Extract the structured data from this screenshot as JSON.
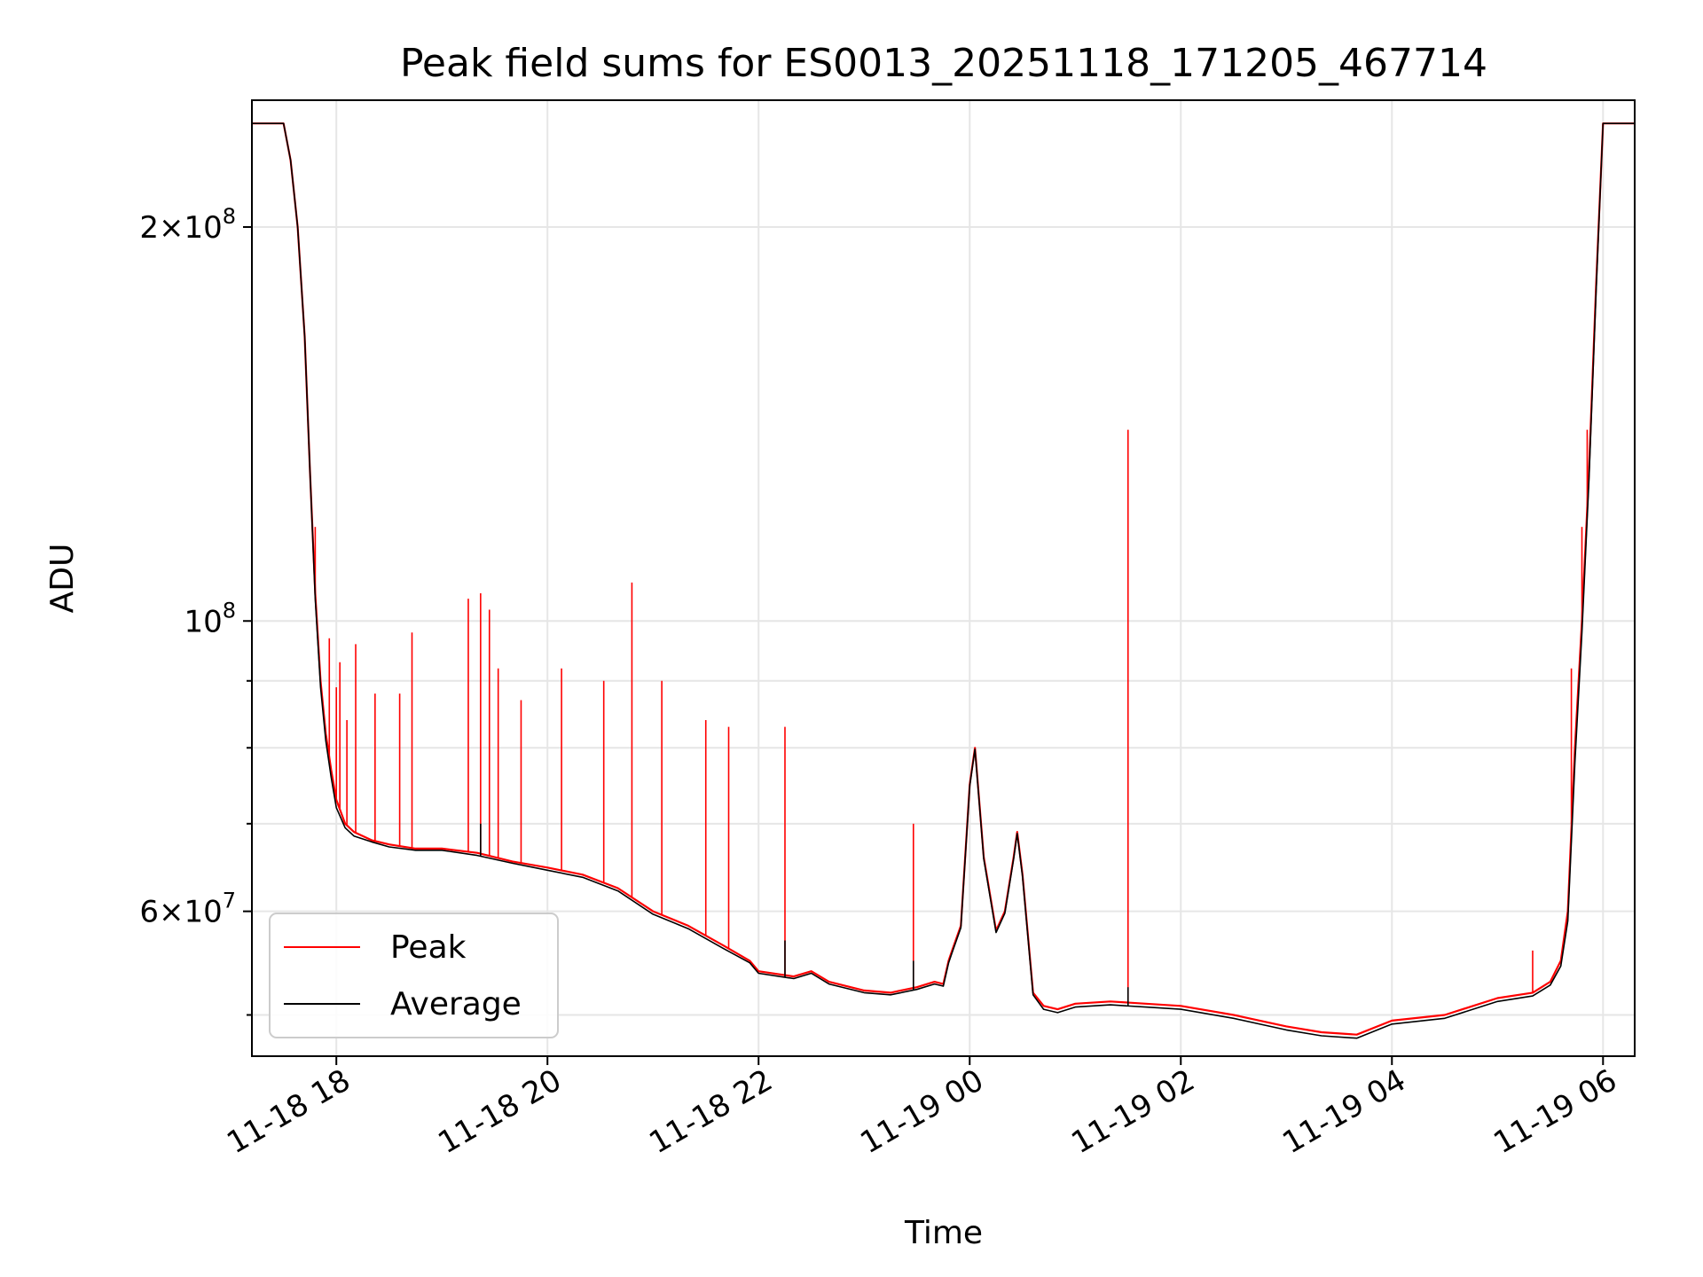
{
  "chart_data": {
    "type": "line",
    "title": "Peak field sums for ES0013_20251118_171205_467714",
    "xlabel": "Time",
    "ylabel": "ADU",
    "y_scale": "log",
    "ylim": [
      46500000,
      250000000
    ],
    "xlim": [
      "2025-11-18 17:12",
      "2025-11-19 06:18"
    ],
    "x_ticks": [
      "11-18 18",
      "11-18 20",
      "11-18 22",
      "11-19 00",
      "11-19 02",
      "11-19 04",
      "11-19 06"
    ],
    "x_tick_times": [
      "2025-11-18 18:00",
      "2025-11-18 20:00",
      "2025-11-18 22:00",
      "2025-11-19 00:00",
      "2025-11-19 02:00",
      "2025-11-19 04:00",
      "2025-11-19 06:00"
    ],
    "y_ticks": [
      {
        "value": 200000000,
        "mant": "2",
        "exp": "8",
        "major": true
      },
      {
        "value": 100000000,
        "mant": "",
        "exp": "8",
        "major": true
      },
      {
        "value": 60000000,
        "mant": "6",
        "exp": "7",
        "major": true
      }
    ],
    "y_minor_ticks": [
      50000000,
      70000000,
      80000000,
      90000000
    ],
    "grid": true,
    "legend_position": "lower-left",
    "series": [
      {
        "name": "Peak",
        "color": "#ff0000",
        "x": [
          "2025-11-18 17:12",
          "2025-11-18 17:30",
          "2025-11-18 17:34",
          "2025-11-18 17:38",
          "2025-11-18 17:42",
          "2025-11-18 17:45",
          "2025-11-18 17:48",
          "2025-11-18 17:51",
          "2025-11-18 17:54",
          "2025-11-18 17:57",
          "2025-11-18 18:00",
          "2025-11-18 18:05",
          "2025-11-18 18:10",
          "2025-11-18 18:20",
          "2025-11-18 18:30",
          "2025-11-18 18:45",
          "2025-11-18 19:00",
          "2025-11-18 19:20",
          "2025-11-18 19:40",
          "2025-11-18 20:00",
          "2025-11-18 20:20",
          "2025-11-18 20:40",
          "2025-11-18 21:00",
          "2025-11-18 21:20",
          "2025-11-18 21:40",
          "2025-11-18 21:55",
          "2025-11-18 22:00",
          "2025-11-18 22:20",
          "2025-11-18 22:30",
          "2025-11-18 22:40",
          "2025-11-18 23:00",
          "2025-11-18 23:15",
          "2025-11-18 23:30",
          "2025-11-18 23:40",
          "2025-11-18 23:45",
          "2025-11-18 23:48",
          "2025-11-18 23:50",
          "2025-11-18 23:55",
          "2025-11-19 00:00",
          "2025-11-19 00:03",
          "2025-11-19 00:08",
          "2025-11-19 00:15",
          "2025-11-19 00:20",
          "2025-11-19 00:25",
          "2025-11-19 00:27",
          "2025-11-19 00:30",
          "2025-11-19 00:36",
          "2025-11-19 00:42",
          "2025-11-19 00:50",
          "2025-11-19 01:00",
          "2025-11-19 01:20",
          "2025-11-19 01:40",
          "2025-11-19 02:00",
          "2025-11-19 02:30",
          "2025-11-19 03:00",
          "2025-11-19 03:20",
          "2025-11-19 03:40",
          "2025-11-19 04:00",
          "2025-11-19 04:30",
          "2025-11-19 05:00",
          "2025-11-19 05:20",
          "2025-11-19 05:30",
          "2025-11-19 05:36",
          "2025-11-19 05:40",
          "2025-11-19 05:44",
          "2025-11-19 05:48",
          "2025-11-19 05:52",
          "2025-11-19 05:56",
          "2025-11-19 06:00",
          "2025-11-19 06:02",
          "2025-11-19 06:18"
        ],
        "values": [
          240000000,
          240000000,
          225000000,
          200000000,
          165000000,
          130000000,
          105000000,
          90000000,
          82000000,
          77000000,
          73000000,
          70000000,
          69000000,
          68000000,
          67500000,
          67000000,
          67000000,
          66500000,
          65500000,
          64800000,
          64000000,
          62500000,
          60000000,
          58500000,
          56500000,
          55000000,
          54000000,
          53500000,
          54000000,
          53000000,
          52200000,
          52000000,
          52500000,
          53000000,
          52800000,
          55000000,
          56000000,
          58500000,
          75000000,
          80000000,
          66000000,
          58000000,
          60000000,
          66000000,
          69000000,
          64000000,
          52000000,
          50800000,
          50500000,
          51000000,
          51200000,
          51000000,
          50800000,
          50000000,
          49000000,
          48500000,
          48300000,
          49500000,
          50000000,
          51500000,
          52000000,
          53000000,
          55000000,
          60000000,
          80000000,
          100000000,
          130000000,
          180000000,
          240000000,
          240000000,
          240000000
        ],
        "spikes": [
          {
            "x": "2025-11-18 17:48",
            "value": 118000000
          },
          {
            "x": "2025-11-18 17:56",
            "value": 97000000
          },
          {
            "x": "2025-11-18 18:00",
            "value": 89000000
          },
          {
            "x": "2025-11-18 18:02",
            "value": 93000000
          },
          {
            "x": "2025-11-18 18:06",
            "value": 84000000
          },
          {
            "x": "2025-11-18 18:11",
            "value": 96000000
          },
          {
            "x": "2025-11-18 18:22",
            "value": 88000000
          },
          {
            "x": "2025-11-18 18:36",
            "value": 88000000
          },
          {
            "x": "2025-11-18 18:43",
            "value": 98000000
          },
          {
            "x": "2025-11-18 19:15",
            "value": 104000000
          },
          {
            "x": "2025-11-18 19:22",
            "value": 105000000
          },
          {
            "x": "2025-11-18 19:27",
            "value": 102000000
          },
          {
            "x": "2025-11-18 19:32",
            "value": 92000000
          },
          {
            "x": "2025-11-18 19:45",
            "value": 87000000
          },
          {
            "x": "2025-11-18 20:08",
            "value": 92000000
          },
          {
            "x": "2025-11-18 20:32",
            "value": 90000000
          },
          {
            "x": "2025-11-18 20:48",
            "value": 107000000
          },
          {
            "x": "2025-11-18 21:05",
            "value": 90000000
          },
          {
            "x": "2025-11-18 21:30",
            "value": 84000000
          },
          {
            "x": "2025-11-18 21:43",
            "value": 83000000
          },
          {
            "x": "2025-11-18 22:15",
            "value": 83000000
          },
          {
            "x": "2025-11-18 23:28",
            "value": 70000000
          },
          {
            "x": "2025-11-19 01:30",
            "value": 140000000
          },
          {
            "x": "2025-11-19 05:20",
            "value": 56000000
          },
          {
            "x": "2025-11-19 05:42",
            "value": 92000000
          },
          {
            "x": "2025-11-19 05:48",
            "value": 118000000
          },
          {
            "x": "2025-11-19 05:51",
            "value": 140000000
          }
        ]
      },
      {
        "name": "Average",
        "color": "#000000",
        "x": [
          "2025-11-18 17:12",
          "2025-11-18 17:30",
          "2025-11-18 17:34",
          "2025-11-18 17:38",
          "2025-11-18 17:42",
          "2025-11-18 17:45",
          "2025-11-18 17:48",
          "2025-11-18 17:51",
          "2025-11-18 17:54",
          "2025-11-18 17:57",
          "2025-11-18 18:00",
          "2025-11-18 18:05",
          "2025-11-18 18:10",
          "2025-11-18 18:20",
          "2025-11-18 18:30",
          "2025-11-18 18:45",
          "2025-11-18 19:00",
          "2025-11-18 19:20",
          "2025-11-18 19:40",
          "2025-11-18 20:00",
          "2025-11-18 20:20",
          "2025-11-18 20:40",
          "2025-11-18 21:00",
          "2025-11-18 21:20",
          "2025-11-18 21:40",
          "2025-11-18 21:55",
          "2025-11-18 22:00",
          "2025-11-18 22:20",
          "2025-11-18 22:30",
          "2025-11-18 22:40",
          "2025-11-18 23:00",
          "2025-11-18 23:15",
          "2025-11-18 23:30",
          "2025-11-18 23:40",
          "2025-11-18 23:45",
          "2025-11-18 23:48",
          "2025-11-18 23:50",
          "2025-11-18 23:55",
          "2025-11-19 00:00",
          "2025-11-19 00:03",
          "2025-11-19 00:08",
          "2025-11-19 00:15",
          "2025-11-19 00:20",
          "2025-11-19 00:25",
          "2025-11-19 00:27",
          "2025-11-19 00:30",
          "2025-11-19 00:36",
          "2025-11-19 00:42",
          "2025-11-19 00:50",
          "2025-11-19 01:00",
          "2025-11-19 01:20",
          "2025-11-19 01:40",
          "2025-11-19 02:00",
          "2025-11-19 02:30",
          "2025-11-19 03:00",
          "2025-11-19 03:20",
          "2025-11-19 03:40",
          "2025-11-19 04:00",
          "2025-11-19 04:30",
          "2025-11-19 05:00",
          "2025-11-19 05:20",
          "2025-11-19 05:30",
          "2025-11-19 05:36",
          "2025-11-19 05:40",
          "2025-11-19 05:44",
          "2025-11-19 05:48",
          "2025-11-19 05:52",
          "2025-11-19 05:56",
          "2025-11-19 06:00",
          "2025-11-19 06:02",
          "2025-11-19 06:18"
        ],
        "values": [
          240000000,
          240000000,
          225000000,
          200000000,
          165000000,
          130000000,
          104000000,
          89000000,
          81000000,
          76000000,
          72000000,
          69500000,
          68500000,
          67800000,
          67200000,
          66800000,
          66800000,
          66200000,
          65300000,
          64500000,
          63700000,
          62200000,
          59700000,
          58200000,
          56200000,
          54800000,
          53800000,
          53300000,
          53800000,
          52800000,
          52000000,
          51800000,
          52300000,
          52800000,
          52600000,
          54800000,
          55800000,
          58300000,
          74800000,
          79800000,
          65800000,
          57800000,
          59800000,
          65800000,
          68800000,
          63800000,
          51800000,
          50500000,
          50200000,
          50700000,
          50900000,
          50700000,
          50500000,
          49700000,
          48700000,
          48200000,
          48000000,
          49200000,
          49700000,
          51200000,
          51700000,
          52700000,
          54500000,
          59000000,
          78000000,
          98000000,
          128000000,
          178000000,
          240000000,
          240000000,
          240000000
        ],
        "spikes": [
          {
            "x": "2025-11-18 19:22",
            "value": 70000000
          },
          {
            "x": "2025-11-18 22:15",
            "value": 57000000
          },
          {
            "x": "2025-11-18 23:28",
            "value": 55000000
          },
          {
            "x": "2025-11-19 01:30",
            "value": 52500000
          }
        ]
      }
    ]
  }
}
